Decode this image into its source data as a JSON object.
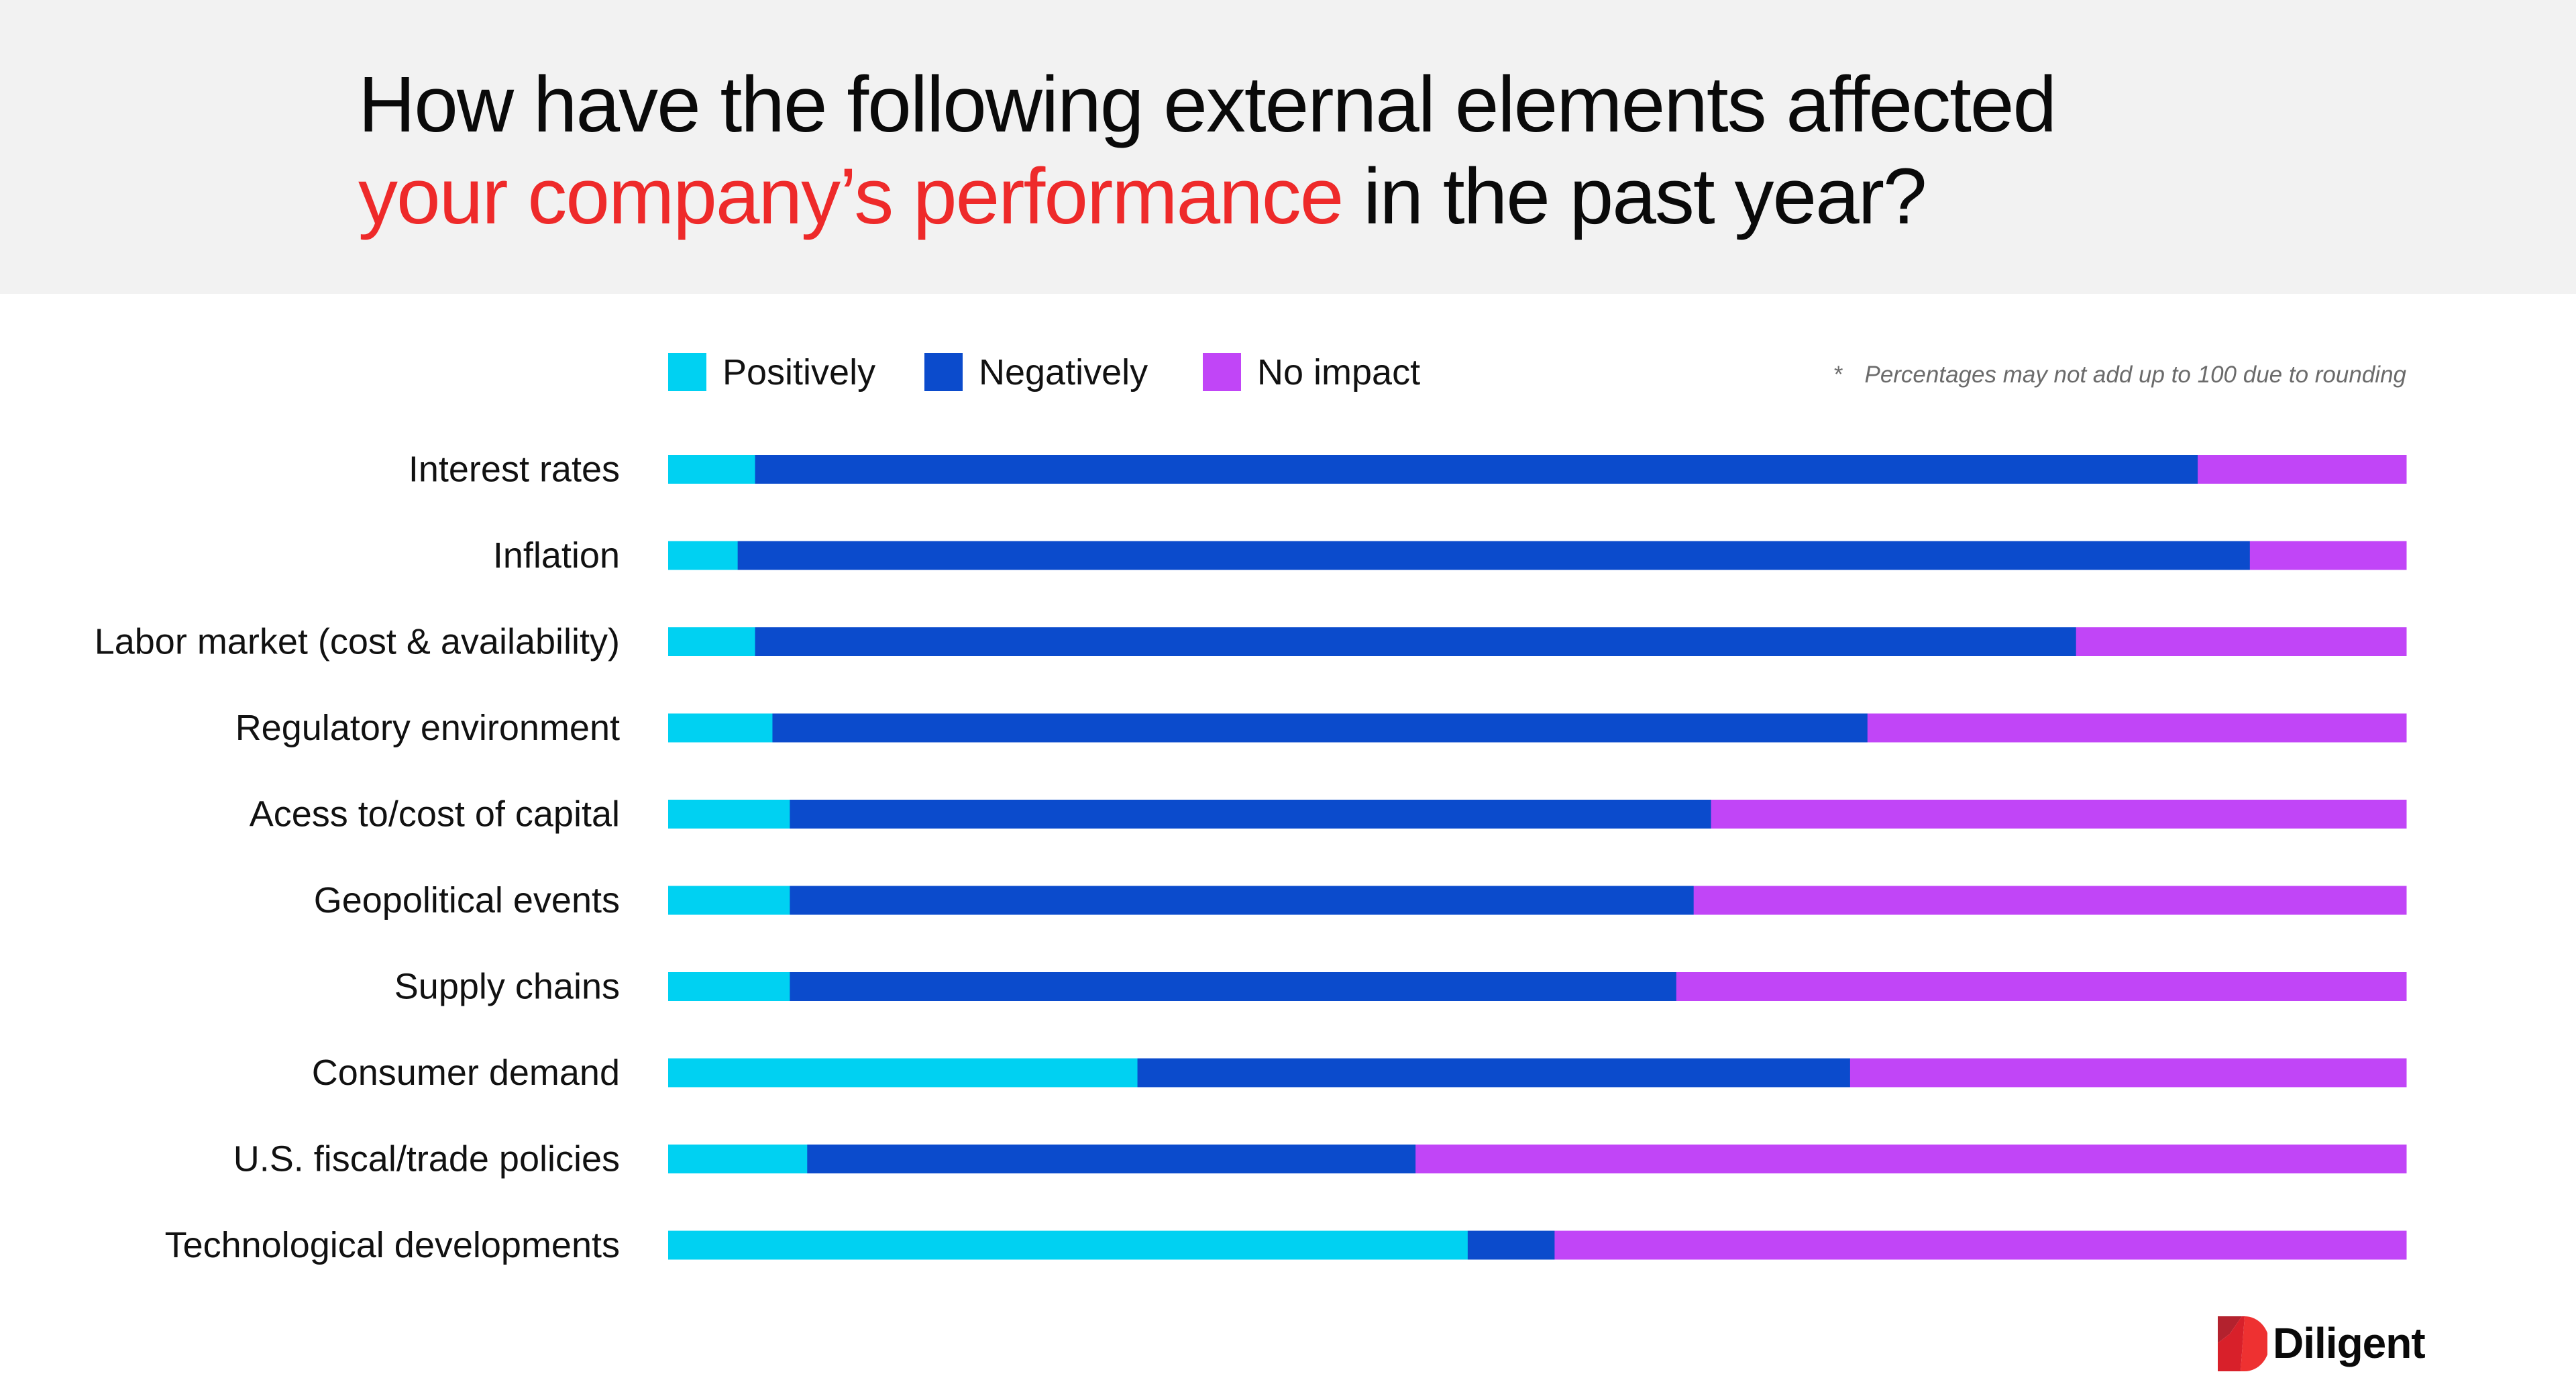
{
  "header": {
    "title_line1": "How have the following external elements affected",
    "title_line2_accent": "your company’s performance",
    "title_line2_rest": " in the past year?"
  },
  "legend": {
    "items": [
      {
        "label": "Positively",
        "color": "#00d1f2"
      },
      {
        "label": "Negatively",
        "color": "#0b4bcc"
      },
      {
        "label": "No impact",
        "color": "#c145f7"
      }
    ]
  },
  "footnote": {
    "marker": "*",
    "text": "Percentages may not add up to 100 due to rounding"
  },
  "logo": {
    "icon": "diligent-d-logo-icon",
    "text": "Diligent",
    "colors": [
      "#b3222e",
      "#d8202a",
      "#ee3131"
    ]
  },
  "chart_data": {
    "type": "bar",
    "orientation": "horizontal",
    "stacked": true,
    "normalized": true,
    "title": "How have the following external elements affected your company’s performance in the past year?",
    "xlabel": "",
    "ylabel": "",
    "xlim": [
      0,
      100
    ],
    "unit": "%",
    "grid": false,
    "legend_position": "top-left",
    "categories": [
      "Interest rates",
      "Inflation",
      "Labor market (cost & availability)",
      "Regulatory environment",
      "Acess to/cost of capital",
      "Geopolitical events",
      "Supply chains",
      "Consumer demand",
      "U.S. fiscal/trade policies",
      "Technological developments"
    ],
    "series": [
      {
        "name": "Positively",
        "color": "#00d1f2",
        "values": [
          5,
          4,
          5,
          6,
          7,
          7,
          7,
          27,
          8,
          46
        ]
      },
      {
        "name": "Negatively",
        "color": "#0b4bcc",
        "values": [
          83,
          87,
          76,
          63,
          53,
          52,
          51,
          41,
          35,
          5
        ]
      },
      {
        "name": "No impact",
        "color": "#c145f7",
        "values": [
          12,
          9,
          19,
          31,
          40,
          41,
          42,
          32,
          57,
          49
        ]
      }
    ],
    "note": "* Percentages may not add up to 100 due to rounding"
  }
}
